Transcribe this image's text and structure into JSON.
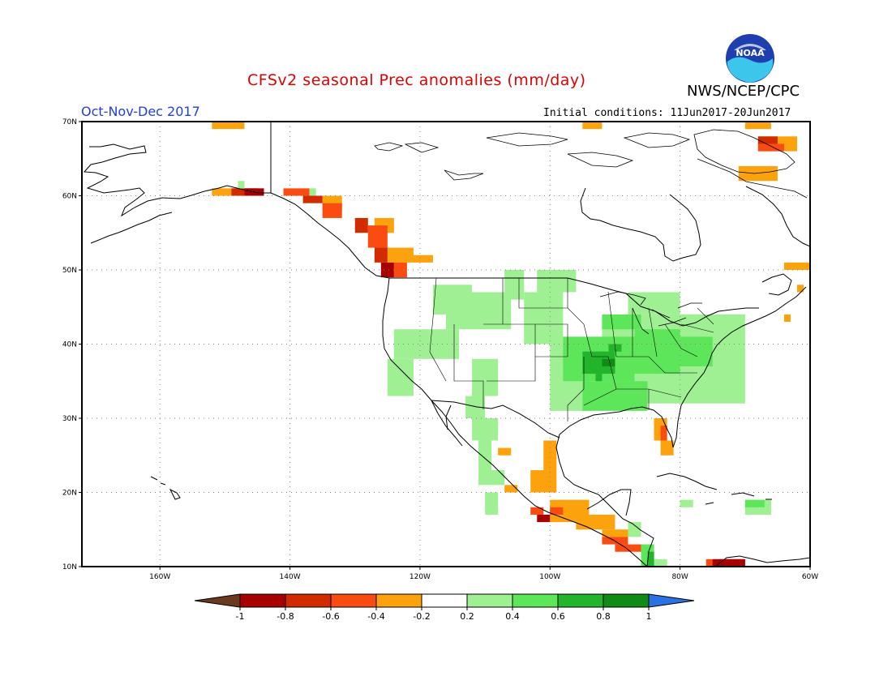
{
  "header": {
    "title": "CFSv2 seasonal Prec anomalies (mm/day)",
    "agency": "NWS/NCEP/CPC",
    "season": "Oct-Nov-Dec 2017",
    "initial_conditions": "Initial conditions: 11Jun2017-20Jun2017",
    "logo_text": "NOAA"
  },
  "map": {
    "lon_range": [
      -172,
      -60
    ],
    "lat_range": [
      10,
      70
    ],
    "lat_labels": [
      {
        "lat": 70,
        "text": "70N"
      },
      {
        "lat": 60,
        "text": "60N"
      },
      {
        "lat": 50,
        "text": "50N"
      },
      {
        "lat": 40,
        "text": "40N"
      },
      {
        "lat": 30,
        "text": "30N"
      },
      {
        "lat": 20,
        "text": "20N"
      },
      {
        "lat": 10,
        "text": "10N"
      }
    ],
    "lon_labels": [
      {
        "lon": -160,
        "text": "160W"
      },
      {
        "lon": -140,
        "text": "140W"
      },
      {
        "lon": -120,
        "text": "120W"
      },
      {
        "lon": -100,
        "text": "100W"
      },
      {
        "lon": -80,
        "text": "80W"
      },
      {
        "lon": -60,
        "text": "60W"
      }
    ]
  },
  "colorbar": {
    "labels": [
      "-1",
      "-0.8",
      "-0.6",
      "-0.4",
      "-0.2",
      "0.2",
      "0.4",
      "0.6",
      "0.8",
      "1"
    ],
    "colors": [
      "#6b3a1e",
      "#a80000",
      "#d22b00",
      "#fa4b10",
      "#fba20c",
      "#ffffff",
      "#9ef092",
      "#5ee65a",
      "#22b42a",
      "#108c16",
      "#2a72e4"
    ]
  },
  "anomaly_regions": [
    {
      "level": "-0.3",
      "color": "#fba20c",
      "rects": [
        [
          -152,
          -147,
          69,
          70
        ],
        [
          -95,
          -92,
          69,
          70
        ],
        [
          -70,
          -66,
          69,
          70
        ],
        [
          -68,
          -62,
          66,
          68
        ],
        [
          -71,
          -65,
          62,
          64
        ],
        [
          -152,
          -148,
          60,
          61
        ],
        [
          -135,
          -132,
          58,
          60
        ],
        [
          -127,
          -124,
          55,
          57
        ],
        [
          -125,
          -121,
          51,
          53
        ],
        [
          -121,
          -118,
          51,
          52
        ],
        [
          -64,
          -60,
          50,
          51
        ],
        [
          -62,
          -61,
          47,
          48
        ],
        [
          -64,
          -63,
          43,
          44
        ],
        [
          -108,
          -106,
          25,
          26
        ],
        [
          -101,
          -99,
          23,
          27
        ],
        [
          -103,
          -99,
          20,
          23
        ],
        [
          -107,
          -105,
          20,
          21
        ],
        [
          -100,
          -94,
          16,
          19
        ],
        [
          -96,
          -90,
          15,
          17
        ],
        [
          -92,
          -88,
          14,
          15
        ],
        [
          -84,
          -82,
          27,
          30
        ],
        [
          -83,
          -81,
          25,
          27
        ]
      ]
    },
    {
      "level": "-0.5",
      "color": "#fa4b10",
      "rects": [
        [
          -141,
          -137,
          60,
          61
        ],
        [
          -135,
          -132,
          57,
          59
        ],
        [
          -128,
          -125,
          53,
          56
        ],
        [
          -124,
          -122,
          49,
          51
        ],
        [
          -103,
          -101,
          17,
          18
        ],
        [
          -100,
          -98,
          17,
          18
        ],
        [
          -92,
          -88,
          13,
          14
        ],
        [
          -90,
          -86,
          12,
          13
        ],
        [
          -83,
          -82,
          27,
          29
        ],
        [
          -68,
          -64,
          66,
          67
        ],
        [
          -76,
          -72,
          10,
          11
        ]
      ]
    },
    {
      "level": "-0.7",
      "color": "#d22b00",
      "rects": [
        [
          -149,
          -145,
          60,
          61
        ],
        [
          -138,
          -135,
          59,
          60
        ],
        [
          -130,
          -128,
          55,
          57
        ],
        [
          -127,
          -125,
          51,
          53
        ],
        [
          -68,
          -65,
          67,
          68
        ],
        [
          -74,
          -70,
          10,
          11
        ]
      ]
    },
    {
      "level": "-0.9",
      "color": "#a80000",
      "rects": [
        [
          -147,
          -144,
          60,
          61
        ],
        [
          -126,
          -124,
          49,
          51
        ],
        [
          -102,
          -100,
          16,
          17
        ],
        [
          -75,
          -70,
          10,
          11
        ]
      ]
    },
    {
      "level": "0.3",
      "color": "#9ef092",
      "rects": [
        [
          -124,
          -114,
          38,
          42
        ],
        [
          -125,
          -121,
          33,
          38
        ],
        [
          -118,
          -112,
          44,
          48
        ],
        [
          -116,
          -106,
          42,
          47
        ],
        [
          -112,
          -108,
          33,
          38
        ],
        [
          -113,
          -110,
          30,
          33
        ],
        [
          -107,
          -104,
          46,
          50
        ],
        [
          -102,
          -96,
          47,
          50
        ],
        [
          -104,
          -98,
          40,
          47
        ],
        [
          -100,
          -94,
          31,
          40
        ],
        [
          -92,
          -70,
          32,
          44
        ],
        [
          -88,
          -80,
          44,
          47
        ],
        [
          -112,
          -108,
          27,
          30
        ],
        [
          -111,
          -109,
          23,
          27
        ],
        [
          -110,
          -108,
          17,
          20
        ],
        [
          -85,
          -76,
          38,
          43
        ],
        [
          -80,
          -78,
          18,
          19
        ],
        [
          -70,
          -66,
          17,
          19
        ],
        [
          -88,
          -86,
          14,
          16
        ],
        [
          -84,
          -82,
          10,
          11
        ],
        [
          -148,
          -147,
          61,
          62
        ],
        [
          -137,
          -136,
          60,
          61
        ],
        [
          -111,
          -107,
          21,
          23
        ]
      ]
    },
    {
      "level": "0.5",
      "color": "#5ee65a",
      "rects": [
        [
          -98,
          -87,
          35,
          41
        ],
        [
          -95,
          -85,
          31,
          35
        ],
        [
          -87,
          -80,
          36,
          42
        ],
        [
          -80,
          -75,
          37,
          41
        ],
        [
          -92,
          -86,
          42,
          44
        ],
        [
          -86,
          -84,
          10,
          13
        ],
        [
          -70,
          -67,
          18,
          19
        ]
      ]
    },
    {
      "level": "0.7",
      "color": "#22b42a",
      "rects": [
        [
          -95,
          -90,
          36,
          39
        ],
        [
          -91,
          -89,
          39,
          40
        ],
        [
          -93,
          -92,
          35,
          36
        ],
        [
          -85,
          -84,
          10,
          12
        ]
      ]
    },
    {
      "level": "0.9",
      "color": "#108c16",
      "rects": [
        [
          -92,
          -90,
          37,
          38
        ]
      ]
    }
  ]
}
